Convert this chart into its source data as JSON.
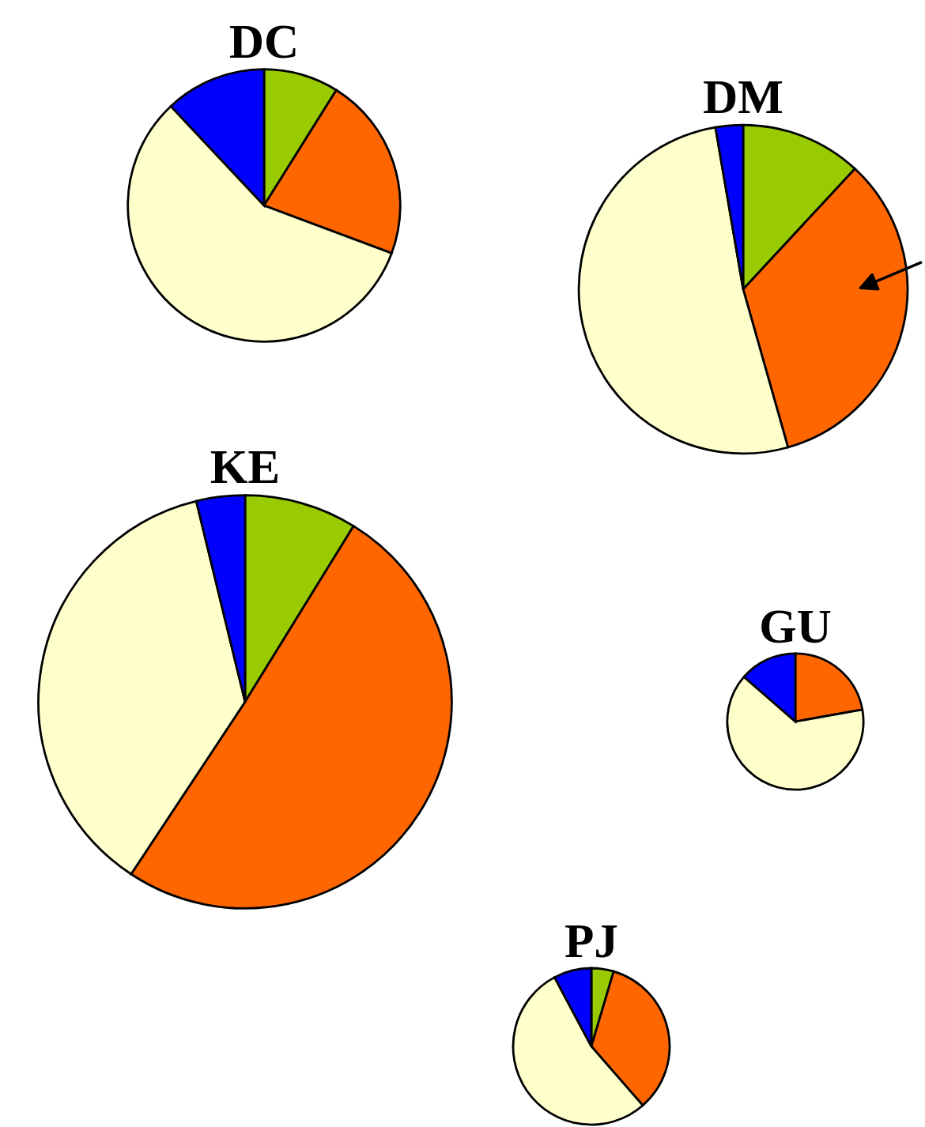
{
  "chart_data": [
    {
      "type": "pie",
      "title": "DC",
      "categories": [
        null,
        null,
        null,
        null
      ],
      "values": [
        8.9,
        21.8,
        57.3,
        12.0
      ],
      "colors": [
        "#99cc00",
        "#ff6600",
        "#ffffcc",
        "#0000ff"
      ]
    },
    {
      "type": "pie",
      "title": "DM",
      "categories": [
        null,
        null,
        null,
        null
      ],
      "values": [
        11.9,
        33.7,
        51.7,
        2.7
      ],
      "colors": [
        "#99cc00",
        "#ff6600",
        "#ffffcc",
        "#0000ff"
      ]
    },
    {
      "type": "pie",
      "title": "KE",
      "categories": [
        null,
        null,
        null,
        null
      ],
      "values": [
        8.8,
        50.5,
        36.9,
        3.8
      ],
      "colors": [
        "#99cc00",
        "#ff6600",
        "#ffffcc",
        "#0000ff"
      ]
    },
    {
      "type": "pie",
      "title": "GU",
      "categories": [
        null,
        null,
        null
      ],
      "values": [
        22.2,
        64.2,
        13.6
      ],
      "colors": [
        "#ff6600",
        "#ffffcc",
        "#0000ff"
      ]
    },
    {
      "type": "pie",
      "title": "PJ",
      "categories": [
        null,
        null,
        null,
        null
      ],
      "values": [
        4.6,
        34.0,
        53.6,
        7.8
      ],
      "colors": [
        "#99cc00",
        "#ff6600",
        "#ffffcc",
        "#0000ff"
      ]
    }
  ]
}
